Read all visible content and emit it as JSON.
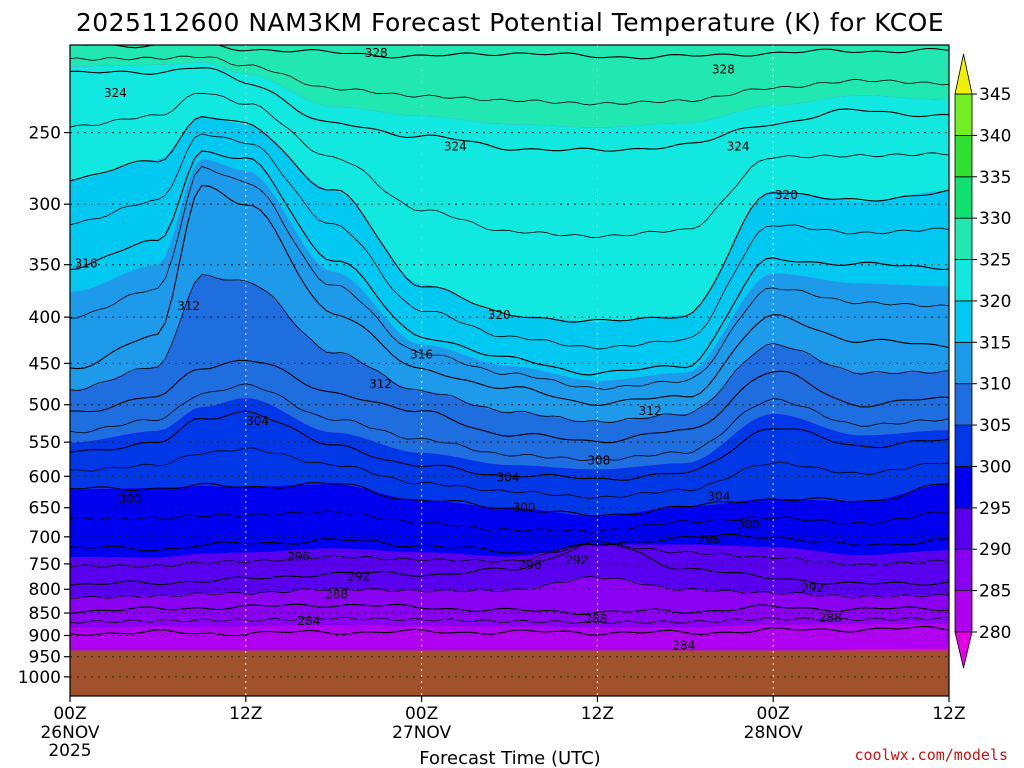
{
  "title": "2025112600 NAM3KM Forecast Potential Temperature (K) for KCOE",
  "credit": "coolwx.com/models",
  "chart_data": {
    "type": "contour",
    "title": "2025112600 NAM3KM Forecast Potential Temperature (K) for KCOE",
    "xlabel": "Forecast Time (UTC)",
    "ylabel": "",
    "x_range_hours": [
      0,
      60
    ],
    "y_range_hpa": [
      200,
      1050
    ],
    "y_scale": "log-pressure (inverted)",
    "grid": true,
    "x_ticks": [
      {
        "hour": 0,
        "label": "00Z",
        "date": "26NOV",
        "year": "2025"
      },
      {
        "hour": 12,
        "label": "12Z"
      },
      {
        "hour": 24,
        "label": "00Z",
        "date": "27NOV"
      },
      {
        "hour": 36,
        "label": "12Z"
      },
      {
        "hour": 48,
        "label": "00Z",
        "date": "28NOV"
      },
      {
        "hour": 60,
        "label": "12Z"
      }
    ],
    "y_ticks": [
      250,
      300,
      350,
      400,
      450,
      500,
      550,
      600,
      650,
      700,
      750,
      800,
      850,
      900,
      950,
      1000
    ],
    "ground_pressure_hpa": 935,
    "ground_color": "#a0522d",
    "colorbar": {
      "levels": [
        280,
        285,
        290,
        295,
        300,
        305,
        310,
        315,
        320,
        325,
        330,
        335,
        340,
        345
      ],
      "labels": [
        "280",
        "285",
        "290",
        "295",
        "300",
        "305",
        "310",
        "315",
        "320",
        "325",
        "330",
        "335",
        "340",
        "345"
      ],
      "colors": [
        "#e600e6",
        "#b000f0",
        "#8a00f0",
        "#5800ee",
        "#0000f0",
        "#0038e8",
        "#1e6ee0",
        "#1e9aea",
        "#00c8f0",
        "#10e8e0",
        "#20e8b0",
        "#10e070",
        "#30e030",
        "#70f020",
        "#b8f010",
        "#f0f000"
      ]
    },
    "contour_profile_hours": [
      0,
      6,
      9,
      12,
      18,
      24,
      30,
      36,
      42,
      48,
      54,
      60
    ],
    "isentropes": [
      {
        "theta": 284,
        "pressure_hpa": [
          895,
          893,
          895,
          895,
          892,
          892,
          892,
          893,
          894,
          888,
          886,
          884
        ]
      },
      {
        "theta": 288,
        "pressure_hpa": [
          845,
          842,
          838,
          837,
          832,
          838,
          845,
          848,
          846,
          838,
          842,
          840
        ]
      },
      {
        "theta": 292,
        "pressure_hpa": [
          790,
          788,
          782,
          780,
          768,
          770,
          762,
          710,
          758,
          778,
          790,
          786
        ]
      },
      {
        "theta": 296,
        "pressure_hpa": [
          720,
          722,
          715,
          712,
          706,
          715,
          728,
          716,
          700,
          700,
          716,
          705
        ]
      },
      {
        "theta": 300,
        "pressure_hpa": [
          620,
          618,
          615,
          616,
          612,
          638,
          650,
          664,
          648,
          635,
          640,
          612
        ]
      },
      {
        "theta": 304,
        "pressure_hpa": [
          565,
          550,
          520,
          508,
          555,
          585,
          598,
          604,
          596,
          530,
          555,
          548
        ]
      },
      {
        "theta": 308,
        "pressure_hpa": [
          510,
          490,
          455,
          445,
          485,
          510,
          540,
          548,
          535,
          460,
          500,
          492
        ]
      },
      {
        "theta": 312,
        "pressure_hpa": [
          455,
          420,
          285,
          300,
          395,
          458,
          480,
          498,
          490,
          400,
          425,
          430
        ]
      },
      {
        "theta": 316,
        "pressure_hpa": [
          352,
          330,
          262,
          268,
          345,
          420,
          445,
          462,
          452,
          345,
          350,
          352
        ]
      },
      {
        "theta": 320,
        "pressure_hpa": [
          282,
          268,
          240,
          245,
          290,
          368,
          398,
          405,
          398,
          290,
          298,
          290
        ]
      },
      {
        "theta": 324,
        "pressure_hpa": [
          215,
          214,
          212,
          220,
          245,
          252,
          260,
          262,
          258,
          244,
          236,
          240
        ]
      },
      {
        "theta": 328,
        "pressure_hpa": [
          200,
          200,
          200,
          202,
          204,
          206,
          204,
          206,
          206,
          204,
          203,
          203
        ]
      }
    ],
    "contour_labels": [
      {
        "text": "328",
        "hour": 20.9,
        "pressure_hpa": 204
      },
      {
        "text": "328",
        "hour": 44.6,
        "pressure_hpa": 213
      },
      {
        "text": "324",
        "hour": 3.1,
        "pressure_hpa": 226
      },
      {
        "text": "324",
        "hour": 26.3,
        "pressure_hpa": 259
      },
      {
        "text": "324",
        "hour": 45.6,
        "pressure_hpa": 259
      },
      {
        "text": "320",
        "hour": 48.9,
        "pressure_hpa": 293
      },
      {
        "text": "320",
        "hour": 29.3,
        "pressure_hpa": 398
      },
      {
        "text": "316",
        "hour": 1.1,
        "pressure_hpa": 349
      },
      {
        "text": "316",
        "hour": 24.0,
        "pressure_hpa": 440
      },
      {
        "text": "312",
        "hour": 8.1,
        "pressure_hpa": 389
      },
      {
        "text": "312",
        "hour": 21.2,
        "pressure_hpa": 474
      },
      {
        "text": "312",
        "hour": 39.6,
        "pressure_hpa": 508
      },
      {
        "text": "308",
        "hour": 36.1,
        "pressure_hpa": 576
      },
      {
        "text": "304",
        "hour": 12.8,
        "pressure_hpa": 521
      },
      {
        "text": "304",
        "hour": 29.9,
        "pressure_hpa": 602
      },
      {
        "text": "304",
        "hour": 44.3,
        "pressure_hpa": 632
      },
      {
        "text": "300",
        "hour": 4.1,
        "pressure_hpa": 636
      },
      {
        "text": "300",
        "hour": 31.0,
        "pressure_hpa": 650
      },
      {
        "text": "300",
        "hour": 46.3,
        "pressure_hpa": 678
      },
      {
        "text": "296",
        "hour": 15.6,
        "pressure_hpa": 736
      },
      {
        "text": "296",
        "hour": 31.4,
        "pressure_hpa": 752
      },
      {
        "text": "296",
        "hour": 43.6,
        "pressure_hpa": 706
      },
      {
        "text": "292",
        "hour": 19.7,
        "pressure_hpa": 774
      },
      {
        "text": "292",
        "hour": 34.6,
        "pressure_hpa": 743
      },
      {
        "text": "292",
        "hour": 50.7,
        "pressure_hpa": 797
      },
      {
        "text": "288",
        "hour": 18.2,
        "pressure_hpa": 811
      },
      {
        "text": "288",
        "hour": 35.9,
        "pressure_hpa": 863
      },
      {
        "text": "288",
        "hour": 51.9,
        "pressure_hpa": 861
      },
      {
        "text": "284",
        "hour": 16.3,
        "pressure_hpa": 867
      },
      {
        "text": "284",
        "hour": 41.9,
        "pressure_hpa": 923
      }
    ]
  }
}
